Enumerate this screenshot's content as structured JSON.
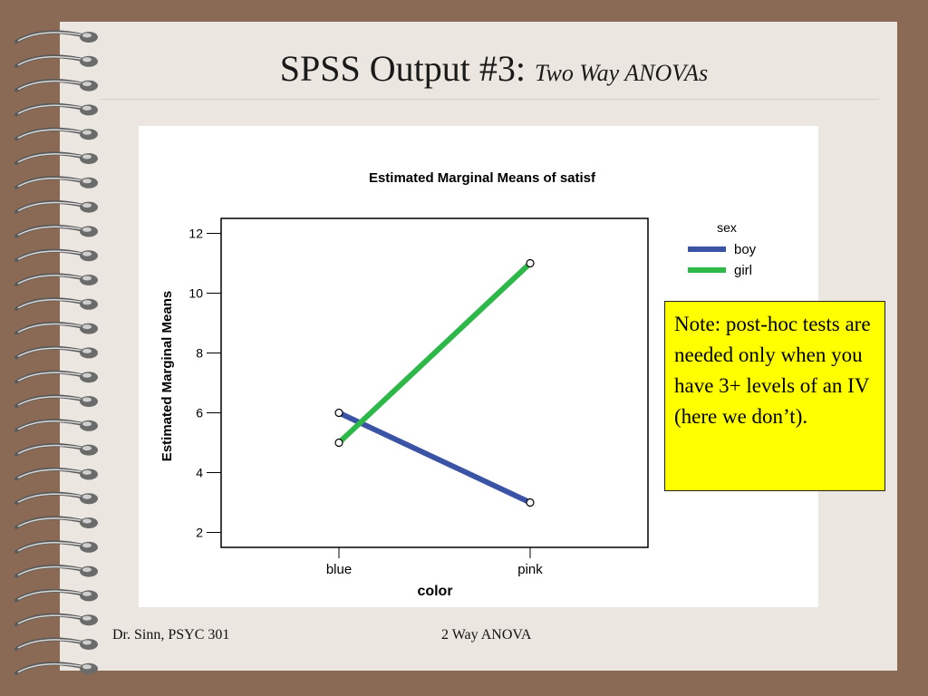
{
  "slide": {
    "title": "SPSS Output #3:",
    "subtitle": "Two Way ANOVAs",
    "note": "Note:  post-hoc tests are needed only when you have 3+ levels of an IV (here we don’t).",
    "footer_left": "Dr. Sinn, PSYC 301",
    "footer_center": "2 Way ANOVA"
  },
  "chart_data": {
    "type": "line",
    "title": "Estimated Marginal Means of satisf",
    "xlabel": "color",
    "ylabel": "Estimated Marginal Means",
    "categories": [
      "blue",
      "pink"
    ],
    "yticks": [
      2,
      4,
      6,
      8,
      10,
      12
    ],
    "ylim": [
      1.5,
      12.5
    ],
    "legend_title": "sex",
    "legend_position": "right",
    "grid": false,
    "series": [
      {
        "name": "boy",
        "values": [
          6,
          3
        ],
        "color": "#3b53a4"
      },
      {
        "name": "girl",
        "values": [
          5,
          11
        ],
        "color": "#2eb84a"
      }
    ]
  }
}
